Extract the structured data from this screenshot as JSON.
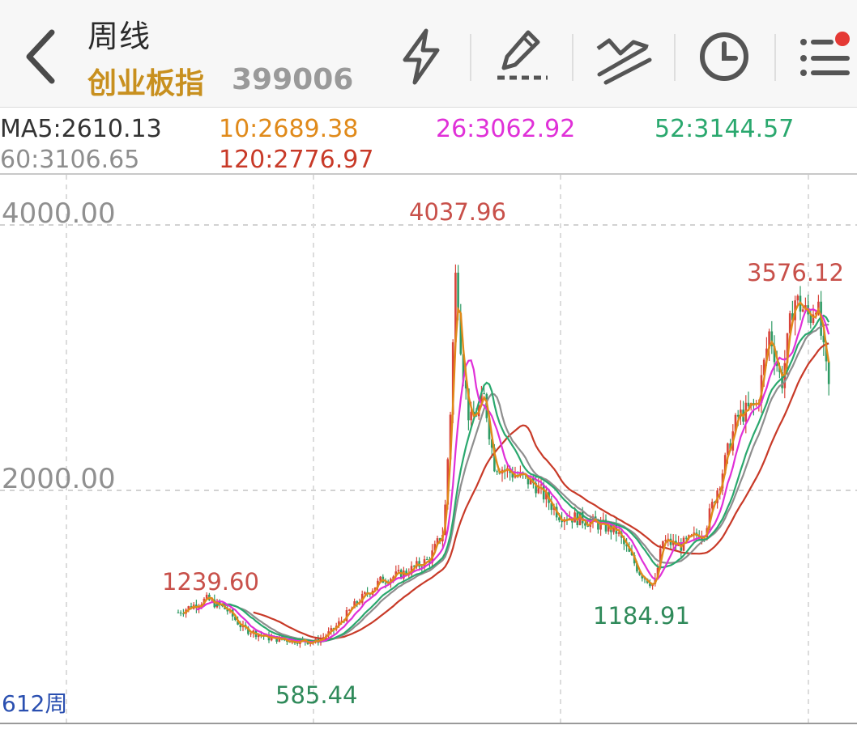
{
  "header": {
    "period_title": "周线",
    "index_name": "创业板指",
    "index_code": "399006",
    "tools": [
      "lightning-icon",
      "pen-draw-icon",
      "trend-line-icon",
      "clock-icon",
      "menu-list-icon"
    ],
    "notification_dot_color": "#e53935"
  },
  "ma": {
    "ma5": "MA5:2610.13",
    "ma10": "10:2689.38",
    "ma26": "26:3062.92",
    "ma52": "52:3144.57",
    "ma60": "60:3106.65",
    "ma120": "120:2776.97",
    "colors": {
      "ma5": "#333333",
      "ma10": "#e08a1a",
      "ma26": "#e030d8",
      "ma52": "#2aa86e",
      "ma60": "#8e8e8e",
      "ma120": "#c83a28"
    }
  },
  "chart": {
    "axis_top": "4000.00",
    "axis_mid": "2000.00",
    "period_count": "612周",
    "labels": {
      "high_1": "1239.60",
      "low_1": "585.44",
      "peak": "4037.96",
      "low_2": "1184.91",
      "high_2": "3576.12"
    },
    "up_color": "#d9443a",
    "down_color": "#2f9b64"
  }
}
